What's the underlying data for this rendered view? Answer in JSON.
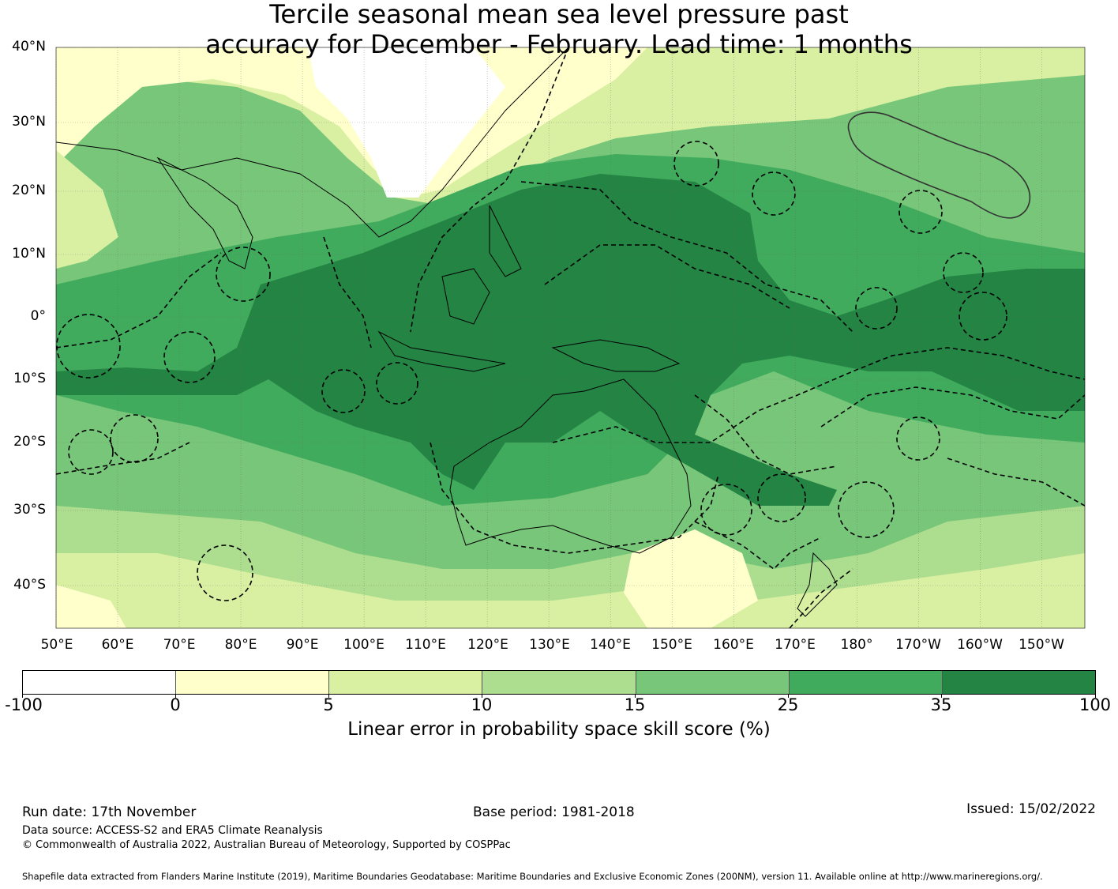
{
  "title": {
    "line1": "Tercile seasonal mean sea level pressure past",
    "line2": "accuracy for December - February. Lead time: 1 months"
  },
  "map": {
    "lat_labels": [
      "40°N",
      "30°N",
      "20°N",
      "10°N",
      "0°",
      "10°S",
      "20°S",
      "30°S",
      "40°S"
    ],
    "lon_labels": [
      "50°E",
      "60°E",
      "70°E",
      "80°E",
      "90°E",
      "100°E",
      "110°E",
      "120°E",
      "130°E",
      "140°E",
      "150°E",
      "160°E",
      "170°E",
      "180°",
      "170°W",
      "160°W",
      "150°W"
    ],
    "lat_extent": [
      -46,
      40
    ],
    "lon_extent": [
      50,
      217
    ],
    "grid": true,
    "boundaries": "dashed maritime EEZ boundaries"
  },
  "colorbar": {
    "ticks": [
      "-100",
      "0",
      "5",
      "10",
      "15",
      "25",
      "35",
      "100"
    ],
    "colors": [
      "#ffffff",
      "#ffffcc",
      "#d9f0a3",
      "#addd8e",
      "#78c679",
      "#41ab5d",
      "#238443"
    ],
    "label": "Linear error in probability space skill score (%)"
  },
  "footer": {
    "run_date": "Run date: 17th November",
    "base_period": "Base period: 1981-2018",
    "issued": "Issued: 15/02/2022",
    "data_source": "Data source: ACCESS-S2 and ERA5 Climate Reanalysis",
    "copyright": "© Commonwealth of Australia 2022, Australian Bureau of Meteorology, Supported by COSPPac",
    "shapefile": "Shapefile data extracted from Flanders Marine Institute (2019), Maritime Boundaries Geodatabase: Maritime Boundaries and Exclusive Economic Zones (200NM), version 11. Available online at http://www.marineregions.org/."
  }
}
